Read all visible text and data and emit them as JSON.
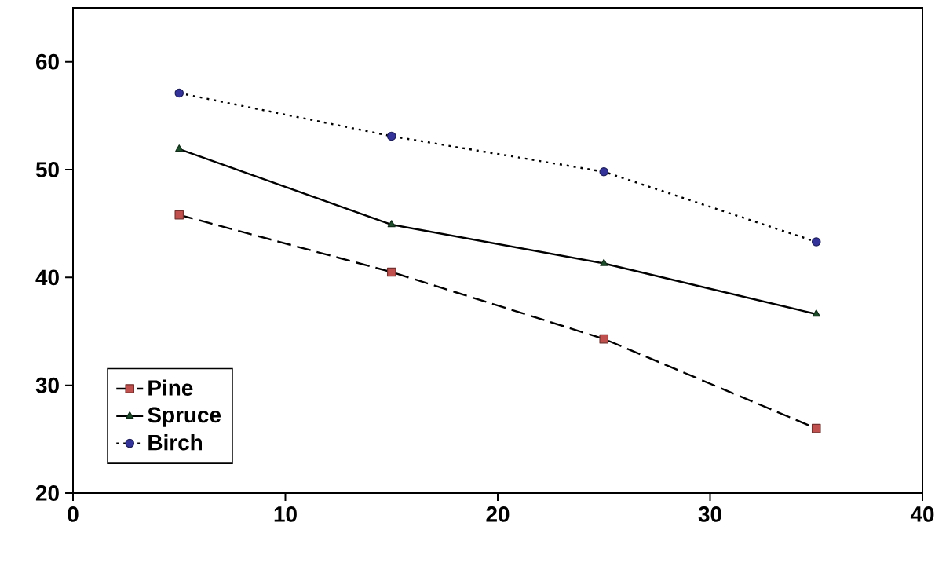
{
  "chart_data": {
    "type": "line",
    "x": [
      5,
      15,
      25,
      35
    ],
    "series": [
      {
        "name": "Pine",
        "color": "#c0504d",
        "values": [
          45.8,
          40.5,
          34.3,
          26.0
        ],
        "marker": "square",
        "line_style": "dashed"
      },
      {
        "name": "Spruce",
        "color": "#1e4d2b",
        "values": [
          51.9,
          44.9,
          41.3,
          36.6
        ],
        "marker": "triangle",
        "line_style": "solid"
      },
      {
        "name": "Birch",
        "color": "#333399",
        "values": [
          57.1,
          53.1,
          49.8,
          43.3
        ],
        "marker": "circle",
        "line_style": "dotted"
      }
    ],
    "xlim": [
      0,
      40
    ],
    "xticks": [
      0,
      10,
      20,
      30,
      40
    ],
    "ylim": [
      20,
      65
    ],
    "yticks": [
      20,
      30,
      40,
      50,
      60
    ],
    "grid": false,
    "legend": "bottom left"
  }
}
